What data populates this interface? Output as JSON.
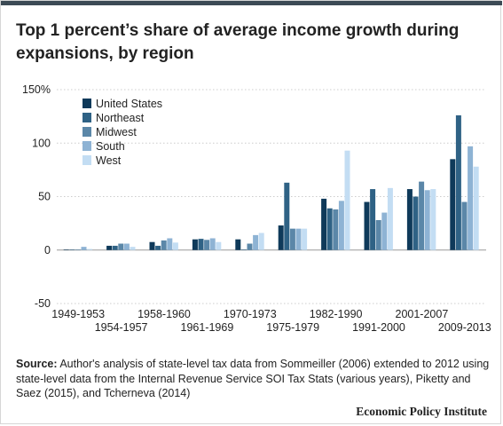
{
  "title": "Top 1 percent’s share of average income growth during expansions, by region",
  "source_label": "Source:",
  "source_text": "Author's analysis of state-level tax data from Sommeiller (2006) extended to 2012 using state-level data from the Internal Revenue Service SOI Tax Stats (various years), Piketty and Saez (2015), and Tcherneva (2014)",
  "publisher": "Economic Policy Institute",
  "chart_data": {
    "type": "bar",
    "title": "Top 1 percent’s share of average income growth during expansions, by region",
    "xlabel": "",
    "ylabel": "",
    "ylim": [
      -50,
      150
    ],
    "yticks": [
      -50,
      0,
      50,
      100,
      150
    ],
    "ytick_labels": [
      "-50",
      "0",
      "50",
      "100",
      "150%"
    ],
    "grid": true,
    "legend_position": "top-left",
    "categories": [
      "1949-1953",
      "1954-1957",
      "1958-1960",
      "1961-1969",
      "1970-1973",
      "1975-1979",
      "1982-1990",
      "1991-2000",
      "2001-2007",
      "2009-2013"
    ],
    "series": [
      {
        "name": "United States",
        "color": "#0f3a5a",
        "values": [
          0.5,
          4,
          7.5,
          10,
          10,
          23,
          48,
          45,
          57,
          85
        ]
      },
      {
        "name": "Northeast",
        "color": "#2f6285",
        "values": [
          0.5,
          4,
          4,
          10.5,
          0.5,
          63,
          39,
          57,
          50,
          126
        ]
      },
      {
        "name": "Midwest",
        "color": "#5b87a8",
        "values": [
          0.5,
          6,
          9,
          9.5,
          6,
          20,
          38,
          28,
          64,
          45
        ]
      },
      {
        "name": "South",
        "color": "#8eb3d4",
        "values": [
          3,
          6,
          11,
          11,
          14,
          20,
          46,
          35,
          56,
          97
        ]
      },
      {
        "name": "West",
        "color": "#c3ddf3",
        "values": [
          1,
          3,
          7,
          7.5,
          16,
          20,
          93,
          58,
          57,
          78
        ]
      }
    ]
  }
}
